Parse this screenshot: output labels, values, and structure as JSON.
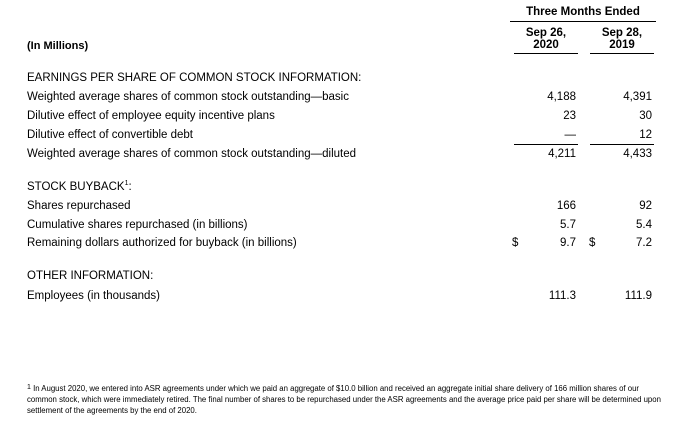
{
  "header": {
    "group_title": "Three Months Ended",
    "col1": [
      "Sep 26,",
      "2020"
    ],
    "col2": [
      "Sep 28,",
      "2019"
    ],
    "units": "(In Millions)"
  },
  "eps": {
    "section_title": "EARNINGS PER SHARE OF COMMON STOCK INFORMATION:",
    "rows": [
      {
        "label": "Weighted average shares of common stock outstanding—basic",
        "v2020": "4,188",
        "v2019": "4,391"
      },
      {
        "label": "Dilutive effect of employee equity incentive plans",
        "v2020": "23",
        "v2019": "30"
      },
      {
        "label": "Dilutive effect of convertible debt",
        "v2020": "—",
        "v2019": "12"
      },
      {
        "label": "Weighted average shares of common stock outstanding—diluted",
        "v2020": "4,211",
        "v2019": "4,433"
      }
    ]
  },
  "buyback": {
    "section_title": "STOCK BUYBACK",
    "footnote_marker": "1",
    "section_suffix": ":",
    "rows": [
      {
        "label": "Shares repurchased",
        "v2020": "166",
        "v2019": "92"
      },
      {
        "label": "Cumulative shares repurchased (in billions)",
        "v2020": "5.7",
        "v2019": "5.4"
      },
      {
        "label": "Remaining dollars authorized for buyback (in billions)",
        "v2020": "9.7",
        "v2019": "7.2",
        "currency": "$"
      }
    ]
  },
  "other": {
    "section_title": "OTHER INFORMATION:",
    "rows": [
      {
        "label": "Employees (in thousands)",
        "v2020": "111.3",
        "v2019": "111.9"
      }
    ]
  },
  "footnote": {
    "marker": "1",
    "text": " In August 2020, we entered into ASR agreements under which we paid an aggregate of $10.0 billion and received an aggregate initial share delivery of 166 million shares of our common stock, which were immediately retired. The final number of shares to be repurchased under the ASR agreements and the average price paid per share will be determined upon settlement of the agreements by the end of 2020."
  }
}
